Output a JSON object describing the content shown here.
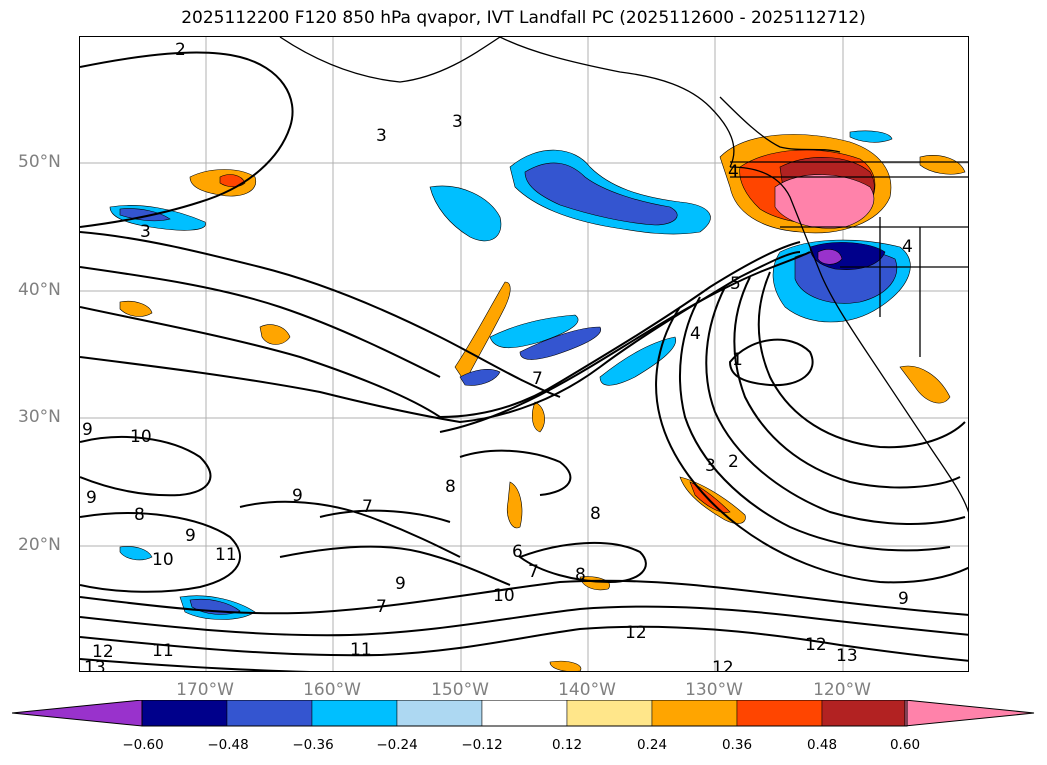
{
  "title": "2025112200 F120 850 hPa qvapor, IVT Landfall PC (2025112600 - 2025112712)",
  "lat_labels": [
    "50°N",
    "40°N",
    "30°N",
    "20°N"
  ],
  "lon_labels": [
    "170°W",
    "160°W",
    "150°W",
    "140°W",
    "130°W",
    "120°W"
  ],
  "colorbar": {
    "ticks": [
      "−0.60",
      "−0.48",
      "−0.36",
      "−0.24",
      "−0.12",
      "0.12",
      "0.24",
      "0.36",
      "0.48",
      "0.60"
    ],
    "colors": {
      "under": "#9932cc",
      "bins": [
        "#00008b",
        "#3455d0",
        "#00bfff",
        "#add8f2",
        "#ffffff",
        "#ffe68a",
        "#ffa500",
        "#ff4500",
        "#b22222"
      ],
      "over": "#ff82aa"
    }
  },
  "contour_labels": [
    "2",
    "3",
    "3",
    "3",
    "4",
    "4",
    "5",
    "4",
    "1",
    "3",
    "2",
    "7",
    "9",
    "10",
    "9",
    "8",
    "9",
    "8",
    "7",
    "10",
    "11",
    "9",
    "7",
    "6",
    "7",
    "8",
    "10",
    "11",
    "12",
    "11",
    "13",
    "12",
    "12",
    "13",
    "12",
    "9",
    "9",
    "8"
  ]
}
